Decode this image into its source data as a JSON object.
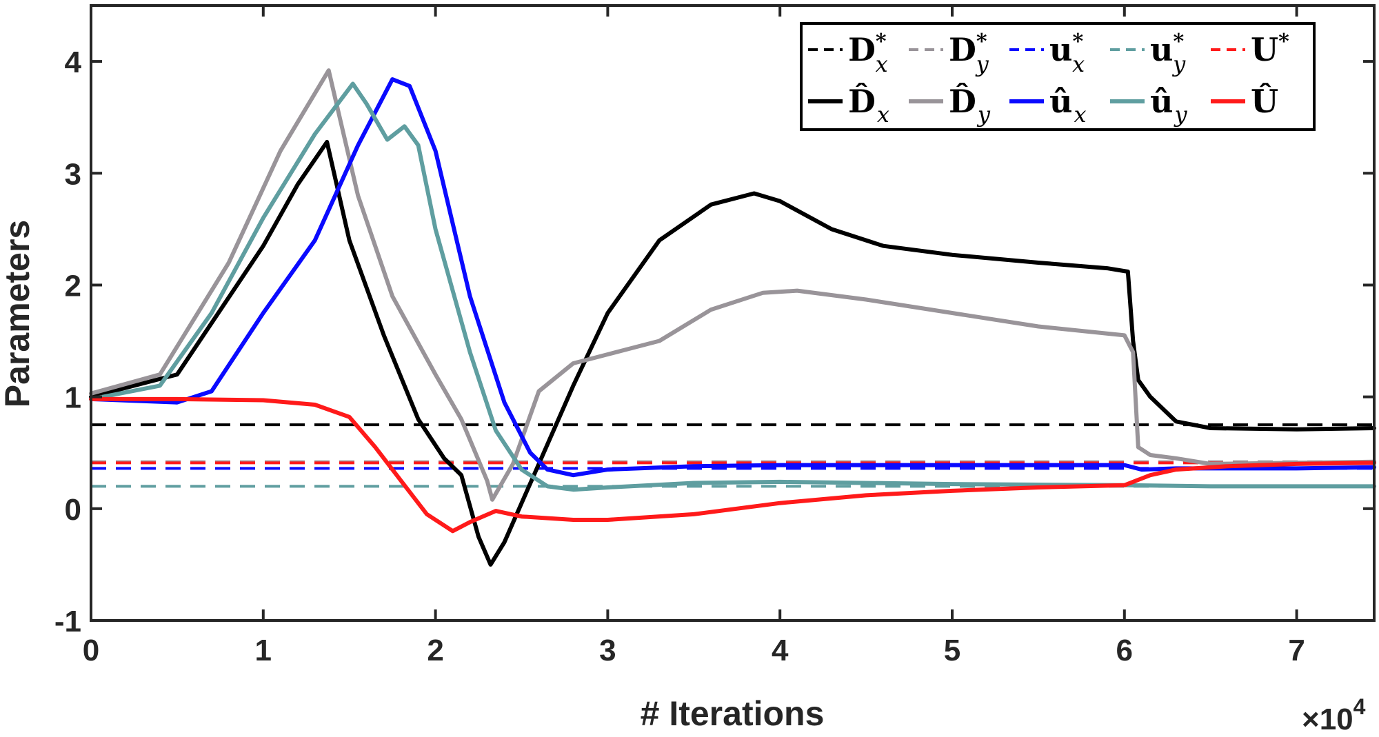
{
  "chart_data": {
    "type": "line",
    "xlabel": "# Iterations",
    "ylabel": "Parameters",
    "x_multiplier": "×10",
    "x_multiplier_exp": "4",
    "xlim": [
      0,
      7.45
    ],
    "ylim": [
      -1,
      4.5
    ],
    "xticks": [
      0,
      1,
      2,
      3,
      4,
      5,
      6,
      7
    ],
    "xtick_labels": [
      "0",
      "1",
      "2",
      "3",
      "4",
      "5",
      "6",
      "7"
    ],
    "yticks": [
      -1,
      0,
      1,
      2,
      3,
      4
    ],
    "ytick_labels": [
      "-1",
      "0",
      "1",
      "2",
      "3",
      "4"
    ],
    "grid": false,
    "legend_position": "top-right",
    "reference_lines": [
      {
        "name": "Dx*",
        "legend_main": "D",
        "legend_sup": "*",
        "legend_sub": "x",
        "color": "#000000",
        "y": 0.75
      },
      {
        "name": "Dy*",
        "legend_main": "D",
        "legend_sup": "*",
        "legend_sub": "y",
        "color": "#999499",
        "y": 0.42
      },
      {
        "name": "ux*",
        "legend_main": "u",
        "legend_sup": "*",
        "legend_sub": "x",
        "color": "#0a0aff",
        "y": 0.36
      },
      {
        "name": "uy*",
        "legend_main": "u",
        "legend_sup": "*",
        "legend_sub": "y",
        "color": "#5f9ea0",
        "y": 0.2
      },
      {
        "name": "U*",
        "legend_main": "U",
        "legend_sup": "*",
        "legend_sub": "",
        "color": "#ff1a1a",
        "y": 0.41
      }
    ],
    "series": [
      {
        "name": "Dx_hat",
        "legend_main": "D̂",
        "legend_sub": "x",
        "color": "#000000",
        "x": [
          0,
          0.5,
          1.0,
          1.2,
          1.37,
          1.5,
          1.7,
          1.9,
          2.05,
          2.15,
          2.25,
          2.32,
          2.4,
          2.6,
          2.8,
          3.0,
          3.3,
          3.6,
          3.85,
          4.0,
          4.3,
          4.6,
          5.0,
          5.5,
          5.9,
          6.02,
          6.05,
          6.08,
          6.15,
          6.3,
          6.5,
          7.0,
          7.45
        ],
        "values": [
          1.0,
          1.2,
          2.35,
          2.9,
          3.28,
          2.4,
          1.55,
          0.8,
          0.45,
          0.3,
          -0.25,
          -0.5,
          -0.3,
          0.4,
          1.1,
          1.75,
          2.4,
          2.72,
          2.82,
          2.75,
          2.5,
          2.35,
          2.27,
          2.2,
          2.15,
          2.12,
          1.5,
          1.15,
          1.0,
          0.78,
          0.72,
          0.71,
          0.72
        ]
      },
      {
        "name": "Dy_hat",
        "legend_main": "D̂",
        "legend_sub": "y",
        "color": "#999499",
        "x": [
          0,
          0.4,
          0.8,
          1.1,
          1.38,
          1.55,
          1.75,
          2.0,
          2.15,
          2.3,
          2.33,
          2.45,
          2.6,
          2.8,
          3.0,
          3.3,
          3.6,
          3.9,
          4.1,
          4.5,
          5.0,
          5.5,
          6.0,
          6.05,
          6.08,
          6.15,
          6.3,
          6.5,
          7.0,
          7.45
        ],
        "values": [
          1.03,
          1.2,
          2.2,
          3.2,
          3.92,
          2.8,
          1.9,
          1.2,
          0.8,
          0.25,
          0.08,
          0.4,
          1.05,
          1.3,
          1.38,
          1.5,
          1.78,
          1.93,
          1.95,
          1.87,
          1.75,
          1.63,
          1.55,
          1.4,
          0.55,
          0.48,
          0.45,
          0.4,
          0.41,
          0.42
        ]
      },
      {
        "name": "ux_hat",
        "legend_main": "û",
        "legend_sub": "x",
        "color": "#0a0aff",
        "x": [
          0,
          0.5,
          0.7,
          1.0,
          1.3,
          1.55,
          1.75,
          1.85,
          2.0,
          2.2,
          2.4,
          2.55,
          2.65,
          2.8,
          3.0,
          3.5,
          4.0,
          5.0,
          6.0,
          6.1,
          6.3,
          7.0,
          7.45
        ],
        "values": [
          0.98,
          0.95,
          1.05,
          1.75,
          2.4,
          3.25,
          3.84,
          3.78,
          3.2,
          1.9,
          0.95,
          0.5,
          0.35,
          0.3,
          0.35,
          0.38,
          0.39,
          0.39,
          0.39,
          0.35,
          0.36,
          0.36,
          0.37
        ]
      },
      {
        "name": "uy_hat",
        "legend_main": "û",
        "legend_sub": "y",
        "color": "#5f9ea0",
        "x": [
          0,
          0.4,
          0.7,
          1.0,
          1.3,
          1.52,
          1.6,
          1.72,
          1.82,
          1.9,
          2.0,
          2.2,
          2.35,
          2.5,
          2.65,
          2.8,
          3.0,
          3.5,
          4.0,
          5.0,
          6.0,
          6.5,
          7.0,
          7.45
        ],
        "values": [
          0.98,
          1.1,
          1.75,
          2.6,
          3.35,
          3.8,
          3.62,
          3.3,
          3.42,
          3.25,
          2.5,
          1.4,
          0.7,
          0.35,
          0.2,
          0.17,
          0.19,
          0.23,
          0.24,
          0.22,
          0.21,
          0.2,
          0.2,
          0.2
        ]
      },
      {
        "name": "U_hat",
        "legend_main": "Û",
        "legend_sub": "",
        "color": "#ff1a1a",
        "x": [
          0,
          0.5,
          1.0,
          1.3,
          1.5,
          1.65,
          1.8,
          1.95,
          2.1,
          2.2,
          2.35,
          2.5,
          2.8,
          3.0,
          3.5,
          4.0,
          4.5,
          5.0,
          5.5,
          6.0,
          6.05,
          6.15,
          6.3,
          6.6,
          7.0,
          7.45
        ],
        "values": [
          0.98,
          0.98,
          0.97,
          0.93,
          0.82,
          0.55,
          0.25,
          -0.05,
          -0.2,
          -0.12,
          -0.02,
          -0.07,
          -0.1,
          -0.1,
          -0.05,
          0.05,
          0.12,
          0.16,
          0.19,
          0.21,
          0.24,
          0.3,
          0.35,
          0.38,
          0.4,
          0.41
        ]
      }
    ]
  }
}
